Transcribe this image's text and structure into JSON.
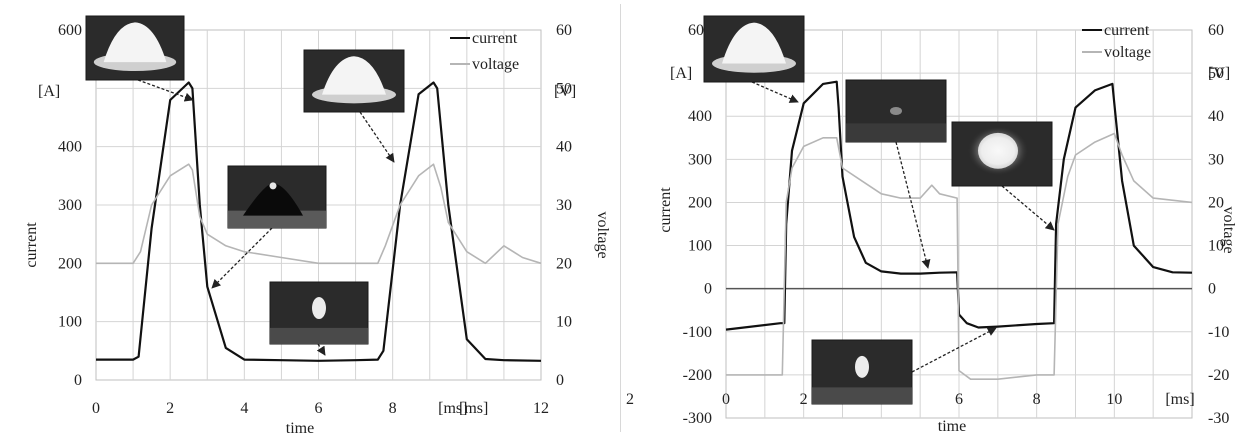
{
  "chart_data": [
    {
      "type": "line",
      "xlabel": "time",
      "x_unit": "[ms]",
      "ylabel": "current",
      "y_unit": "[A]",
      "y2label": "voltage",
      "y2_unit": "[V]",
      "xlim": [
        0,
        12
      ],
      "ylim": [
        0,
        600
      ],
      "y2lim": [
        0,
        60
      ],
      "x_ticks": [
        "0",
        "2",
        "4",
        "6",
        "8",
        "[ms]",
        "12"
      ],
      "y_ticks": [
        "0",
        "100",
        "200",
        "300",
        "400",
        "600"
      ],
      "y2_ticks": [
        "0",
        "10",
        "20",
        "30",
        "40",
        "50",
        "60"
      ],
      "grid": true,
      "legend": "top-right",
      "colors": {
        "current": "#111111",
        "voltage": "#b5b5b5"
      },
      "series": [
        {
          "name": "current",
          "axis": "left",
          "x": [
            0,
            1.0,
            1.15,
            1.5,
            2.0,
            2.5,
            2.6,
            2.8,
            3.0,
            3.5,
            4.0,
            5.0,
            6.0,
            7.0,
            7.6,
            7.75,
            8.2,
            8.7,
            9.1,
            9.2,
            9.5,
            10.0,
            10.5,
            11.0,
            12.0
          ],
          "y": [
            35,
            35,
            40,
            260,
            480,
            510,
            500,
            300,
            160,
            55,
            35,
            34,
            33,
            34,
            35,
            50,
            300,
            490,
            510,
            500,
            300,
            70,
            36,
            34,
            33
          ]
        },
        {
          "name": "voltage",
          "axis": "right",
          "x": [
            0,
            1.0,
            1.2,
            1.5,
            2.0,
            2.5,
            2.6,
            2.8,
            3.0,
            3.5,
            4.0,
            5.0,
            6.0,
            7.0,
            7.6,
            7.8,
            8.2,
            8.7,
            9.1,
            9.3,
            9.5,
            10.0,
            10.5,
            11.0,
            11.5,
            12.0
          ],
          "y": [
            20,
            20,
            22,
            30,
            35,
            37,
            36,
            28,
            25,
            23,
            22,
            21,
            20,
            20,
            20,
            23,
            30,
            35,
            37,
            33,
            27,
            22,
            20,
            23,
            21,
            20
          ]
        }
      ]
    },
    {
      "type": "line",
      "xlabel": "time",
      "x_unit": "[ms]",
      "ylabel": "current",
      "y_unit": "[A]",
      "y2label": "voltage",
      "y2_unit": "[V]",
      "xlim": [
        0,
        12
      ],
      "ylim": [
        -300,
        600
      ],
      "y2lim": [
        -30,
        60
      ],
      "x_ticks": [
        "0",
        "2",
        "4",
        "6",
        "8",
        "10",
        "[ms]",
        "12"
      ],
      "y_ticks": [
        "-300",
        "-200",
        "-100",
        "0",
        "100",
        "200",
        "300",
        "400",
        "600"
      ],
      "y2_ticks": [
        "-30",
        "-20",
        "-10",
        "0",
        "10",
        "20",
        "30",
        "40",
        "50",
        "60"
      ],
      "grid": true,
      "legend": "top-right",
      "colors": {
        "current": "#111111",
        "voltage": "#b5b5b5"
      },
      "series": [
        {
          "name": "current",
          "axis": "left",
          "x": [
            0,
            1.4,
            1.5,
            1.55,
            1.7,
            2.0,
            2.5,
            2.85,
            2.9,
            3.0,
            3.3,
            3.6,
            4.0,
            4.5,
            5.0,
            5.5,
            5.95,
            6.0,
            6.2,
            6.5,
            7.0,
            8.0,
            8.45,
            8.5,
            8.7,
            9.0,
            9.5,
            9.95,
            10.0,
            10.2,
            10.5,
            11.0,
            11.5,
            12.0
          ],
          "y": [
            -95,
            -80,
            -80,
            150,
            320,
            430,
            475,
            480,
            420,
            260,
            120,
            60,
            40,
            35,
            35,
            37,
            38,
            -60,
            -80,
            -90,
            -88,
            -82,
            -80,
            150,
            300,
            420,
            460,
            475,
            430,
            250,
            100,
            50,
            38,
            37
          ]
        },
        {
          "name": "voltage",
          "axis": "right",
          "x": [
            0,
            1.45,
            1.55,
            1.7,
            2.0,
            2.5,
            2.85,
            3.0,
            3.5,
            4.0,
            4.5,
            5.0,
            5.3,
            5.5,
            5.95,
            6.0,
            6.3,
            7.0,
            8.0,
            8.45,
            8.55,
            8.8,
            9.0,
            9.5,
            10.0,
            10.2,
            10.5,
            11.0,
            12.0
          ],
          "y": [
            -20,
            -20,
            20,
            28,
            33,
            35,
            35,
            28,
            25,
            22,
            21,
            21,
            24,
            22,
            21,
            -19,
            -21,
            -21,
            -20,
            -20,
            15,
            26,
            31,
            34,
            36,
            31,
            25,
            21,
            20
          ]
        }
      ]
    }
  ]
}
